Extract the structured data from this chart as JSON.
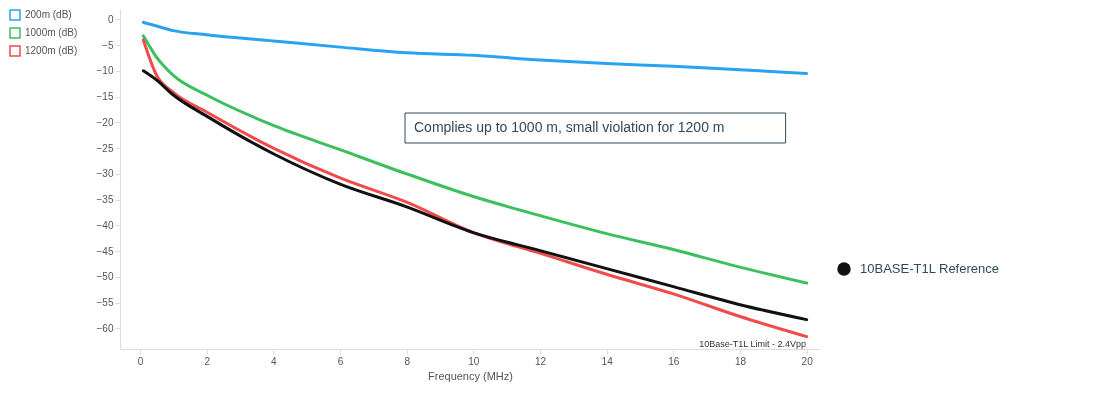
{
  "chart_data": {
    "type": "line",
    "xlabel": "Frequency (MHz)",
    "xlim": [
      -0.6,
      20.4
    ],
    "xticks": [
      0,
      2,
      4,
      6,
      8,
      10,
      12,
      14,
      16,
      18,
      20
    ],
    "ylim": [
      -64,
      2
    ],
    "yticks": [
      0,
      -5,
      -10,
      -15,
      -20,
      -25,
      -30,
      -35,
      -40,
      -45,
      -50,
      -55,
      -60
    ],
    "legend": "left",
    "x": [
      0.1,
      0.5,
      1,
      2,
      4,
      6,
      8,
      10,
      12,
      14,
      16,
      18,
      20
    ],
    "series": [
      {
        "name": "200m (dB)",
        "color": "#29a3ef",
        "values": [
          -0.6,
          -1.3,
          -2.2,
          -3.0,
          -4.2,
          -5.4,
          -6.5,
          -7.0,
          -7.9,
          -8.6,
          -9.1,
          -9.8,
          -10.5
        ]
      },
      {
        "name": "1000m (dB)",
        "color": "#3cbf5e",
        "values": [
          -3.2,
          -7.4,
          -10.9,
          -14.7,
          -20.6,
          -25.3,
          -30.0,
          -34.4,
          -38.1,
          -41.6,
          -44.7,
          -48.1,
          -51.2
        ]
      },
      {
        "name": "1200m (dB)",
        "color": "#ef4b4b",
        "values": [
          -4.0,
          -10.9,
          -14.2,
          -18.0,
          -25.0,
          -30.8,
          -35.5,
          -41.4,
          -45.4,
          -49.5,
          -53.3,
          -57.7,
          -61.6
        ]
      },
      {
        "name": "10BASE-T1L Reference",
        "color": "#111111",
        "values": [
          -10.0,
          -11.8,
          -14.7,
          -18.8,
          -26.1,
          -32.0,
          -36.4,
          -41.4,
          -44.9,
          -48.4,
          -51.9,
          -55.4,
          -58.3
        ]
      }
    ],
    "annotations": [
      "Complies up to 1000 m, small violation for 1200 m",
      "10Base-T1L Limit - 2.4Vpp"
    ]
  }
}
